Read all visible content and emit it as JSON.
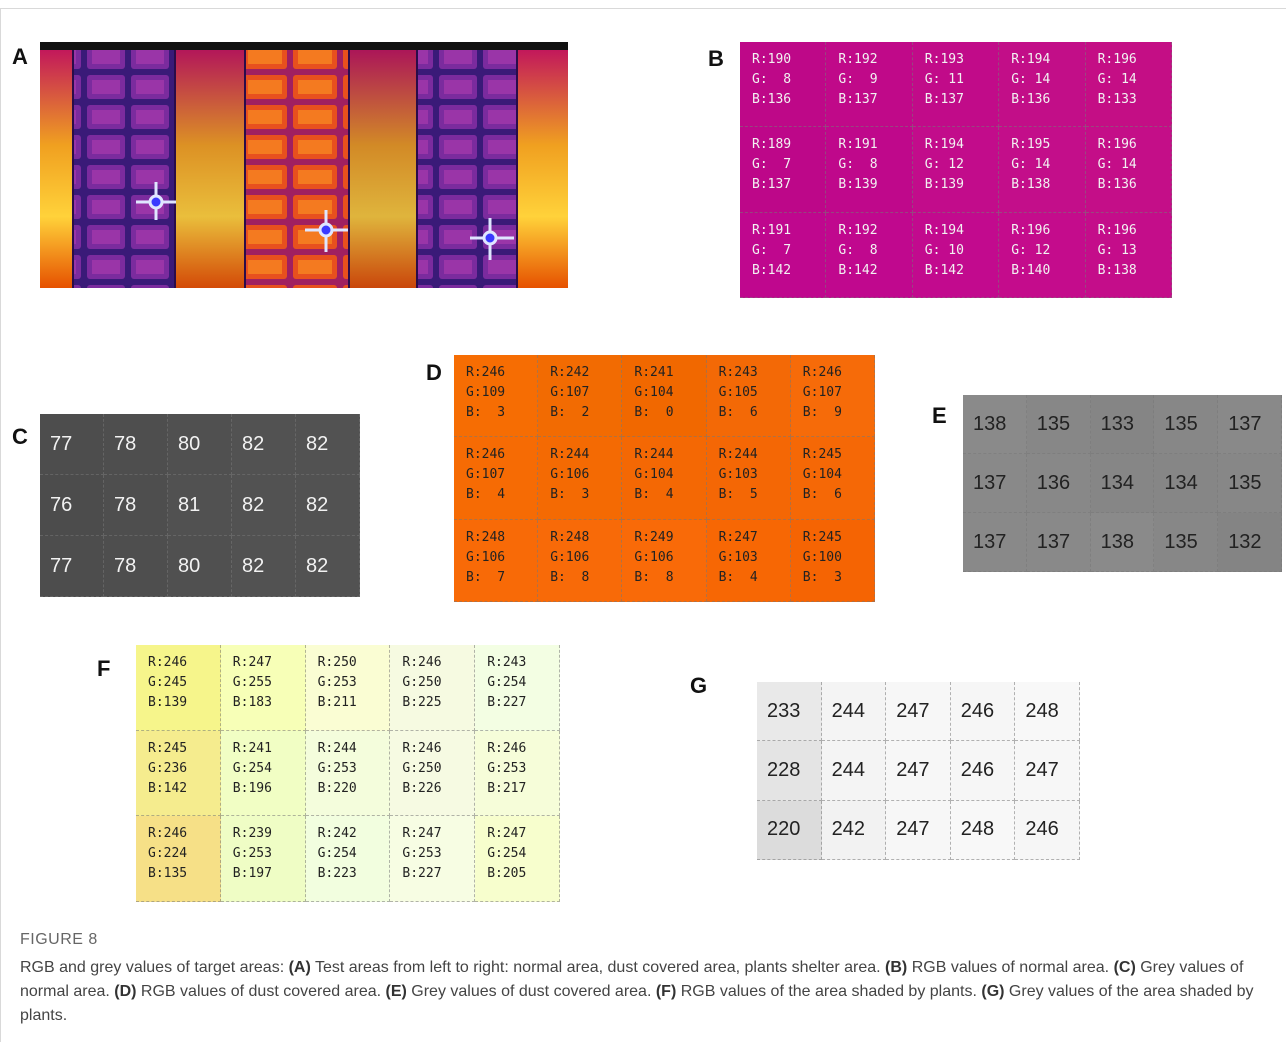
{
  "panels": [
    {
      "label": "A"
    },
    {
      "label": "B",
      "kind": "rgb",
      "rows": [
        [
          [
            190,
            8,
            136
          ],
          [
            192,
            9,
            137
          ],
          [
            193,
            11,
            137
          ],
          [
            194,
            14,
            136
          ],
          [
            196,
            14,
            133
          ]
        ],
        [
          [
            189,
            7,
            137
          ],
          [
            191,
            8,
            139
          ],
          [
            194,
            12,
            139
          ],
          [
            195,
            14,
            138
          ],
          [
            196,
            14,
            136
          ]
        ],
        [
          [
            191,
            7,
            142
          ],
          [
            192,
            8,
            142
          ],
          [
            194,
            10,
            142
          ],
          [
            196,
            12,
            140
          ],
          [
            196,
            13,
            138
          ]
        ]
      ]
    },
    {
      "label": "C",
      "kind": "grey",
      "rows": [
        [
          77,
          78,
          80,
          82,
          82
        ],
        [
          76,
          78,
          81,
          82,
          82
        ],
        [
          77,
          78,
          80,
          82,
          82
        ]
      ]
    },
    {
      "label": "D",
      "kind": "rgb",
      "rows": [
        [
          [
            246,
            109,
            3
          ],
          [
            242,
            107,
            2
          ],
          [
            241,
            104,
            0
          ],
          [
            243,
            105,
            6
          ],
          [
            246,
            107,
            9
          ]
        ],
        [
          [
            246,
            107,
            4
          ],
          [
            244,
            106,
            3
          ],
          [
            244,
            104,
            4
          ],
          [
            244,
            103,
            5
          ],
          [
            245,
            104,
            6
          ]
        ],
        [
          [
            248,
            106,
            7
          ],
          [
            248,
            106,
            8
          ],
          [
            249,
            106,
            8
          ],
          [
            247,
            103,
            4
          ],
          [
            245,
            100,
            3
          ]
        ]
      ]
    },
    {
      "label": "E",
      "kind": "grey",
      "rows": [
        [
          138,
          135,
          133,
          135,
          137
        ],
        [
          137,
          136,
          134,
          134,
          135
        ],
        [
          137,
          137,
          138,
          135,
          132
        ]
      ]
    },
    {
      "label": "F",
      "kind": "rgb",
      "rows": [
        [
          [
            246,
            245,
            139
          ],
          [
            247,
            255,
            183
          ],
          [
            250,
            253,
            211
          ],
          [
            246,
            250,
            225
          ],
          [
            243,
            254,
            227
          ]
        ],
        [
          [
            245,
            236,
            142
          ],
          [
            241,
            254,
            196
          ],
          [
            244,
            253,
            220
          ],
          [
            246,
            250,
            226
          ],
          [
            246,
            253,
            217
          ]
        ],
        [
          [
            246,
            224,
            135
          ],
          [
            239,
            253,
            197
          ],
          [
            242,
            254,
            223
          ],
          [
            247,
            253,
            227
          ],
          [
            247,
            254,
            205
          ]
        ]
      ]
    },
    {
      "label": "G",
      "kind": "grey",
      "rows": [
        [
          233,
          244,
          247,
          246,
          248
        ],
        [
          228,
          244,
          247,
          246,
          247
        ],
        [
          220,
          242,
          247,
          248,
          246
        ]
      ]
    }
  ],
  "channels": [
    "R:",
    "G:",
    "B:"
  ],
  "caption": {
    "figure": "FIGURE 8",
    "intro": "RGB and grey values of target areas: ",
    "parts": [
      {
        "label": "(A)",
        "text": " Test areas from left to right: normal area, dust covered area, plants shelter area. "
      },
      {
        "label": "(B)",
        "text": " RGB values of normal area. "
      },
      {
        "label": "(C)",
        "text": " Grey values of normal area. "
      },
      {
        "label": "(D)",
        "text": " RGB values of dust covered area. "
      },
      {
        "label": "(E)",
        "text": " Grey values of dust covered area. "
      },
      {
        "label": "(F)",
        "text": " RGB values of the area shaded by plants. "
      },
      {
        "label": "(G)",
        "text": " Grey values of the area shaded by plants."
      }
    ]
  }
}
